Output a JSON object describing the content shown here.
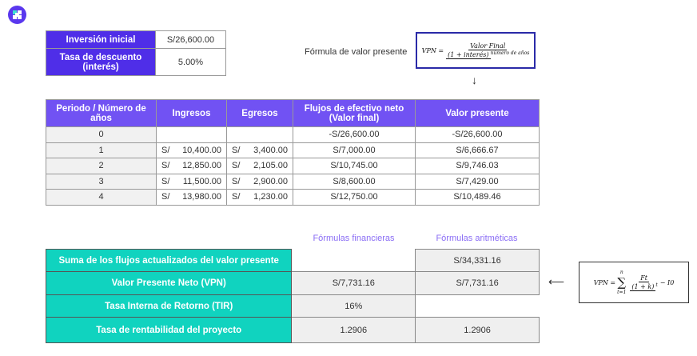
{
  "logo": "logo-icon",
  "inputs": [
    {
      "label": "Inversión inicial",
      "value": "S/26,600.00"
    },
    {
      "label": "Tasa de descuento (interés)",
      "value": "5.00%"
    }
  ],
  "formula1": {
    "caption": "Fórmula de valor presente",
    "lhs": "VPN =",
    "numerator": "Valor Final",
    "denominator": "(1 + interés)",
    "exponent": "número de años"
  },
  "cashflow": {
    "headers": [
      "Periodo / Número de años",
      "Ingresos",
      "Egresos",
      "Flujos de efectivo neto (Valor final)",
      "Valor presente"
    ],
    "currency": "S/",
    "rows": [
      {
        "period": "0",
        "ingresos": "",
        "egresos": "",
        "flujo": "-S/26,600.00",
        "vp": "-S/26,600.00"
      },
      {
        "period": "1",
        "ingresos": "10,400.00",
        "egresos": "3,400.00",
        "flujo": "S/7,000.00",
        "vp": "S/6,666.67"
      },
      {
        "period": "2",
        "ingresos": "12,850.00",
        "egresos": "2,105.00",
        "flujo": "S/10,745.00",
        "vp": "S/9,746.03"
      },
      {
        "period": "3",
        "ingresos": "11,500.00",
        "egresos": "2,900.00",
        "flujo": "S/8,600.00",
        "vp": "S/7,429.00"
      },
      {
        "period": "4",
        "ingresos": "13,980.00",
        "egresos": "1,230.00",
        "flujo": "S/12,750.00",
        "vp": "S/10,489.46"
      }
    ]
  },
  "summary": {
    "col_financieras": "Fórmulas financieras",
    "col_aritmeticas": "Fórmulas aritméticas",
    "rows": [
      {
        "label": "Suma de los flujos actualizados del valor presente",
        "fin": "",
        "arit": "S/34,331.16"
      },
      {
        "label": "Valor Presente Neto (VPN)",
        "fin": "S/7,731.16",
        "arit": "S/7,731.16"
      },
      {
        "label": "Tasa Interna de Retorno (TIR)",
        "fin": "16%",
        "arit": ""
      },
      {
        "label": "Tasa de rentabilidad del proyecto",
        "fin": "1.2906",
        "arit": "1.2906"
      }
    ]
  },
  "formula2": {
    "lhs": "VPN =",
    "sum": "∑",
    "upper": "n",
    "lower": "t=1",
    "numerator": "Ft",
    "denominator": "(1 + k)",
    "exponent": "t",
    "tail": "− I0"
  },
  "colors": {
    "purple": "#7152f3",
    "dark_purple": "#4f2ee8",
    "teal": "#10d3bf"
  }
}
